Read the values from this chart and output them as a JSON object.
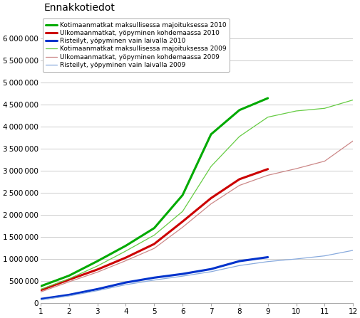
{
  "title": "Ennakkotiedot",
  "xlim": [
    1,
    12
  ],
  "ylim": [
    0,
    6500000
  ],
  "yticks": [
    0,
    500000,
    1000000,
    1500000,
    2000000,
    2500000,
    3000000,
    3500000,
    4000000,
    4500000,
    5000000,
    5500000,
    6000000
  ],
  "xticks": [
    1,
    2,
    3,
    4,
    5,
    6,
    7,
    8,
    9,
    10,
    11,
    12
  ],
  "series": [
    {
      "label": "Kotimaanmatkat maksullisessa majoituksessa 2010",
      "color": "#00aa00",
      "linewidth": 2.2,
      "x": [
        1,
        2,
        3,
        4,
        5,
        6,
        7,
        8,
        9
      ],
      "y": [
        380000,
        620000,
        950000,
        1300000,
        1700000,
        2450000,
        3830000,
        4380000,
        4650000
      ]
    },
    {
      "label": "Ulkomaanmatkat, yöpyminen kohdemaassa 2010",
      "color": "#cc0000",
      "linewidth": 2.2,
      "x": [
        1,
        2,
        3,
        4,
        5,
        6,
        7,
        8,
        9
      ],
      "y": [
        290000,
        530000,
        760000,
        1030000,
        1340000,
        1850000,
        2380000,
        2810000,
        3040000
      ]
    },
    {
      "label": "Risteilyt, yöpyminen vain laivalla 2010",
      "color": "#0033cc",
      "linewidth": 2.2,
      "x": [
        1,
        2,
        3,
        4,
        5,
        6,
        7,
        8,
        9
      ],
      "y": [
        90000,
        185000,
        315000,
        465000,
        575000,
        660000,
        770000,
        950000,
        1040000
      ]
    },
    {
      "label": "Kotimaanmatkat maksullisessa majoituksessa 2009",
      "color": "#66cc44",
      "linewidth": 0.9,
      "x": [
        1,
        2,
        3,
        4,
        5,
        6,
        7,
        8,
        9,
        10,
        11,
        12
      ],
      "y": [
        310000,
        550000,
        840000,
        1180000,
        1540000,
        2080000,
        3100000,
        3780000,
        4220000,
        4360000,
        4420000,
        4610000
      ]
    },
    {
      "label": "Ulkomaanmatkat, yöpyminen kohdemaassa 2009",
      "color": "#cc8888",
      "linewidth": 0.9,
      "x": [
        1,
        2,
        3,
        4,
        5,
        6,
        7,
        8,
        9,
        10,
        11,
        12
      ],
      "y": [
        250000,
        480000,
        700000,
        960000,
        1240000,
        1720000,
        2250000,
        2670000,
        2900000,
        3050000,
        3220000,
        3680000
      ]
    },
    {
      "label": "Risteilyt, yöpyminen vain laivalla 2009",
      "color": "#88aadd",
      "linewidth": 0.9,
      "x": [
        1,
        2,
        3,
        4,
        5,
        6,
        7,
        8,
        9,
        10,
        11,
        12
      ],
      "y": [
        70000,
        160000,
        280000,
        415000,
        520000,
        610000,
        710000,
        850000,
        940000,
        1000000,
        1070000,
        1195000
      ]
    }
  ],
  "background_color": "#ffffff",
  "grid_color": "#cccccc",
  "title_fontsize": 10,
  "tick_fontsize": 7.5,
  "legend_fontsize": 6.5
}
